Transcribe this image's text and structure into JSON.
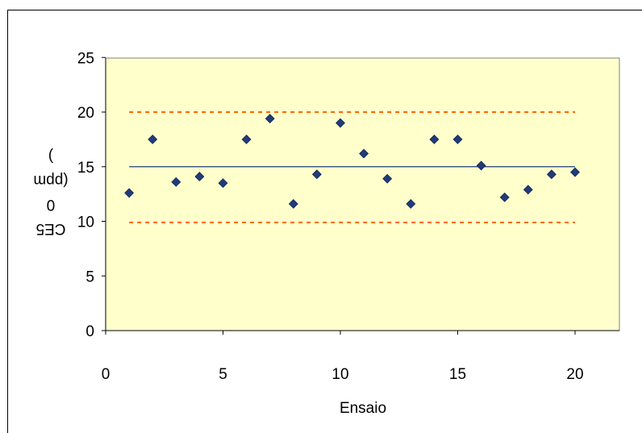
{
  "chart_data": {
    "type": "scatter",
    "title": "",
    "xlabel": "Ensaio",
    "ylabel_lines": [
      "CE5",
      "0",
      "(ppm",
      ")"
    ],
    "xlim": [
      0,
      22
    ],
    "ylim": [
      0,
      25
    ],
    "x_ticks": [
      0,
      5,
      10,
      15,
      20
    ],
    "y_ticks": [
      0,
      5,
      10,
      15,
      20,
      25
    ],
    "grid": false,
    "plot_area_color": "#FFFFCC",
    "series": [
      {
        "marker": "diamond",
        "color": "#1F3B7A",
        "x": [
          1,
          2,
          3,
          4,
          5,
          6,
          7,
          8,
          9,
          10,
          11,
          12,
          13,
          14,
          15,
          16,
          17,
          18,
          19,
          20
        ],
        "y": [
          12.6,
          17.5,
          13.6,
          14.1,
          13.5,
          17.5,
          19.4,
          11.6,
          14.3,
          19.0,
          16.2,
          13.9,
          11.6,
          17.5,
          17.5,
          15.1,
          12.2,
          12.9,
          14.3,
          14.5
        ]
      }
    ],
    "reference_lines": [
      {
        "role": "mean",
        "y": 15.0,
        "x_range": [
          1,
          20
        ],
        "style": "solid",
        "color": "#1F3B7A"
      },
      {
        "role": "upper-limit",
        "y": 20.0,
        "x_range": [
          1,
          20
        ],
        "style": "dashed",
        "color": "#FF6600"
      },
      {
        "role": "lower-limit",
        "y": 9.9,
        "x_range": [
          1,
          20
        ],
        "style": "dashed",
        "color": "#FF6600"
      }
    ]
  }
}
